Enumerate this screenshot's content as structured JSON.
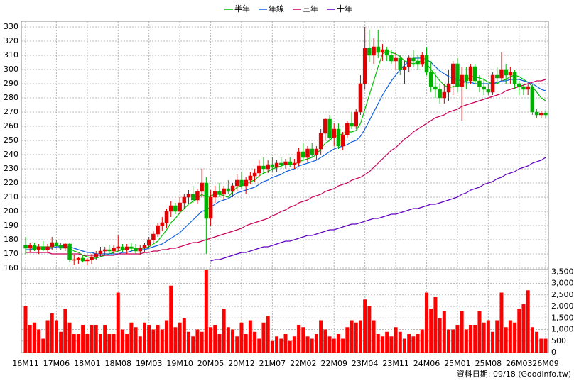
{
  "chart_data": {
    "type": "candlestick",
    "legend": "top",
    "grid": true,
    "footer": "資料日期: 09/18 (Goodinfo.tw)",
    "up_color": "#e00000",
    "down_color": "#00b000",
    "volume_color": "#ff0000",
    "categories": [
      "16M11",
      null,
      null,
      null,
      null,
      null,
      null,
      "17M06",
      null,
      null,
      null,
      null,
      null,
      null,
      "18M01",
      null,
      null,
      null,
      null,
      null,
      null,
      "18M08",
      null,
      null,
      null,
      null,
      null,
      null,
      "19M03",
      null,
      null,
      null,
      null,
      null,
      null,
      "19M10",
      null,
      null,
      null,
      null,
      null,
      null,
      "20M05",
      null,
      null,
      null,
      null,
      null,
      null,
      "20M12",
      null,
      null,
      null,
      null,
      null,
      null,
      "21M07",
      null,
      null,
      null,
      null,
      null,
      null,
      "22M02",
      null,
      null,
      null,
      null,
      null,
      null,
      "22M09",
      null,
      null,
      null,
      null,
      null,
      null,
      "23M04",
      null,
      null,
      null,
      null,
      null,
      null,
      "23M11",
      null,
      null,
      null,
      null,
      null,
      null,
      "24M06",
      null,
      null,
      null,
      null,
      null,
      null,
      "25M01",
      null,
      null,
      null,
      null,
      null,
      null,
      "25M08",
      null,
      null,
      null,
      null,
      null,
      null,
      "26M03",
      null,
      null,
      null,
      null,
      null,
      "26M09"
    ],
    "candles": [
      [
        176,
        182,
        170,
        174,
        2000
      ],
      [
        174,
        178,
        171,
        176,
        1200
      ],
      [
        176,
        178,
        172,
        173,
        1300
      ],
      [
        173,
        177,
        170,
        175,
        1000
      ],
      [
        175,
        179,
        172,
        173,
        600
      ],
      [
        173,
        177,
        171,
        175,
        1400
      ],
      [
        175,
        182,
        173,
        178,
        1700
      ],
      [
        178,
        180,
        174,
        176,
        1400
      ],
      [
        176,
        178,
        173,
        174,
        900
      ],
      [
        174,
        178,
        172,
        177,
        1900
      ],
      [
        177,
        178,
        164,
        166,
        1300
      ],
      [
        166,
        169,
        162,
        166,
        800
      ],
      [
        166,
        168,
        163,
        167,
        800
      ],
      [
        167,
        169,
        164,
        165,
        1200
      ],
      [
        165,
        167,
        162,
        166,
        800
      ],
      [
        166,
        170,
        163,
        168,
        1200
      ],
      [
        168,
        172,
        166,
        170,
        1200
      ],
      [
        170,
        175,
        168,
        172,
        800
      ],
      [
        172,
        175,
        169,
        173,
        1200
      ],
      [
        173,
        176,
        170,
        172,
        800
      ],
      [
        172,
        176,
        170,
        174,
        800
      ],
      [
        174,
        183,
        172,
        175,
        2600
      ],
      [
        175,
        177,
        171,
        173,
        1000
      ],
      [
        173,
        177,
        170,
        175,
        800
      ],
      [
        175,
        178,
        172,
        174,
        1300
      ],
      [
        174,
        177,
        170,
        172,
        1100
      ],
      [
        172,
        176,
        169,
        174,
        700
      ],
      [
        174,
        178,
        171,
        176,
        1300
      ],
      [
        176,
        182,
        174,
        180,
        1200
      ],
      [
        180,
        186,
        178,
        184,
        1000
      ],
      [
        184,
        192,
        182,
        190,
        1200
      ],
      [
        190,
        196,
        186,
        192,
        1000
      ],
      [
        192,
        202,
        188,
        200,
        1400
      ],
      [
        200,
        207,
        196,
        204,
        2900
      ],
      [
        204,
        206,
        198,
        200,
        1100
      ],
      [
        200,
        210,
        198,
        206,
        1300
      ],
      [
        206,
        212,
        202,
        210,
        1500
      ],
      [
        210,
        215,
        205,
        212,
        900
      ],
      [
        212,
        218,
        206,
        208,
        700
      ],
      [
        208,
        216,
        205,
        214,
        1000
      ],
      [
        214,
        230,
        210,
        220,
        900
      ],
      [
        220,
        224,
        170,
        195,
        3600
      ],
      [
        195,
        215,
        190,
        210,
        1100
      ],
      [
        210,
        218,
        206,
        214,
        1200
      ],
      [
        214,
        220,
        210,
        212,
        800
      ],
      [
        212,
        218,
        208,
        216,
        1900
      ],
      [
        216,
        222,
        212,
        214,
        1100
      ],
      [
        214,
        220,
        210,
        218,
        1000
      ],
      [
        218,
        226,
        214,
        222,
        700
      ],
      [
        222,
        228,
        216,
        218,
        1300
      ],
      [
        218,
        224,
        212,
        222,
        800
      ],
      [
        222,
        228,
        219,
        225,
        1400
      ],
      [
        225,
        230,
        221,
        227,
        900
      ],
      [
        227,
        236,
        224,
        232,
        600
      ],
      [
        232,
        238,
        226,
        230,
        1300
      ],
      [
        230,
        236,
        227,
        233,
        1600
      ],
      [
        233,
        238,
        228,
        231,
        500
      ],
      [
        231,
        236,
        228,
        234,
        700
      ],
      [
        234,
        238,
        230,
        233,
        600
      ],
      [
        233,
        237,
        230,
        235,
        800
      ],
      [
        235,
        238,
        231,
        233,
        500
      ],
      [
        233,
        237,
        230,
        234,
        700
      ],
      [
        234,
        245,
        232,
        242,
        1200
      ],
      [
        242,
        248,
        236,
        238,
        1100
      ],
      [
        238,
        246,
        235,
        244,
        700
      ],
      [
        244,
        248,
        238,
        240,
        600
      ],
      [
        240,
        246,
        236,
        244,
        800
      ],
      [
        244,
        258,
        240,
        255,
        1400
      ],
      [
        255,
        266,
        250,
        265,
        1000
      ],
      [
        265,
        268,
        250,
        252,
        700
      ],
      [
        252,
        262,
        246,
        258,
        600
      ],
      [
        258,
        262,
        244,
        246,
        800
      ],
      [
        246,
        256,
        243,
        254,
        600
      ],
      [
        254,
        264,
        252,
        262,
        1100
      ],
      [
        262,
        270,
        258,
        260,
        1400
      ],
      [
        260,
        272,
        258,
        270,
        1300
      ],
      [
        270,
        296,
        268,
        290,
        1400
      ],
      [
        290,
        330,
        286,
        315,
        2300
      ],
      [
        315,
        328,
        305,
        310,
        2000
      ],
      [
        310,
        322,
        304,
        316,
        1400
      ],
      [
        316,
        328,
        308,
        312,
        800
      ],
      [
        312,
        318,
        306,
        314,
        700
      ],
      [
        314,
        316,
        306,
        310,
        900
      ],
      [
        310,
        314,
        304,
        306,
        700
      ],
      [
        306,
        312,
        300,
        308,
        1100
      ],
      [
        308,
        310,
        296,
        300,
        900
      ],
      [
        300,
        306,
        290,
        302,
        600
      ],
      [
        302,
        310,
        298,
        308,
        800
      ],
      [
        308,
        314,
        302,
        306,
        700
      ],
      [
        306,
        310,
        300,
        304,
        800
      ],
      [
        304,
        312,
        302,
        310,
        1000
      ],
      [
        310,
        316,
        296,
        298,
        2600
      ],
      [
        298,
        306,
        284,
        288,
        1900
      ],
      [
        288,
        298,
        280,
        286,
        2400
      ],
      [
        286,
        290,
        276,
        280,
        1500
      ],
      [
        280,
        290,
        276,
        284,
        1800
      ],
      [
        284,
        300,
        278,
        290,
        1000
      ],
      [
        290,
        306,
        282,
        304,
        1000
      ],
      [
        304,
        308,
        284,
        288,
        1200
      ],
      [
        288,
        302,
        264,
        296,
        1800
      ],
      [
        296,
        302,
        286,
        292,
        1000
      ],
      [
        292,
        304,
        290,
        302,
        1200
      ],
      [
        302,
        304,
        290,
        292,
        1200
      ],
      [
        292,
        296,
        284,
        288,
        1800
      ],
      [
        288,
        294,
        282,
        286,
        1300
      ],
      [
        286,
        290,
        282,
        284,
        1400
      ],
      [
        284,
        298,
        282,
        296,
        900
      ],
      [
        296,
        302,
        290,
        294,
        1400
      ],
      [
        294,
        312,
        292,
        300,
        2600
      ],
      [
        300,
        304,
        290,
        296,
        1100
      ],
      [
        296,
        302,
        290,
        298,
        1400
      ],
      [
        298,
        300,
        286,
        290,
        1300
      ],
      [
        290,
        292,
        282,
        288,
        1900
      ],
      [
        288,
        290,
        282,
        286,
        2100
      ],
      [
        286,
        290,
        282,
        288,
        2700
      ],
      [
        288,
        290,
        268,
        270,
        1100
      ],
      [
        270,
        272,
        266,
        268,
        900
      ],
      [
        268,
        271,
        266,
        269,
        600
      ],
      [
        269,
        271,
        266,
        268,
        600
      ]
    ],
    "series": [
      {
        "name": "半年",
        "color": "#00c000",
        "values": [
          175,
          175,
          175,
          175,
          175,
          175,
          175,
          176,
          175,
          175,
          174,
          172,
          171,
          169,
          168,
          167,
          167,
          168,
          169,
          170,
          171,
          172,
          173,
          174,
          174,
          174,
          174,
          174,
          175,
          177,
          179,
          183,
          187,
          192,
          195,
          199,
          202,
          205,
          207,
          209,
          212,
          210,
          211,
          212,
          212,
          211,
          210,
          214,
          217,
          218,
          219,
          221,
          222,
          225,
          227,
          228,
          230,
          231,
          232,
          233,
          233,
          233,
          235,
          236,
          237,
          238,
          240,
          244,
          248,
          250,
          253,
          253,
          255,
          256,
          256,
          257,
          262,
          272,
          282,
          292,
          302,
          311,
          313,
          312,
          311,
          309,
          306,
          305,
          304,
          305,
          306,
          304,
          300,
          296,
          292,
          289,
          287,
          288,
          288,
          290,
          292,
          295,
          295,
          294,
          293,
          291,
          290,
          290,
          292,
          293,
          295,
          296,
          295,
          293,
          291,
          288,
          284,
          280,
          278
        ]
      },
      {
        "name": "年線",
        "color": "#1060e0",
        "values": [
          173,
          173,
          174,
          174,
          174,
          174,
          174,
          175,
          175,
          175,
          175,
          174,
          173,
          172,
          171,
          171,
          170,
          170,
          170,
          170,
          170,
          170,
          171,
          171,
          172,
          173,
          173,
          173,
          174,
          175,
          176,
          177,
          179,
          181,
          183,
          185,
          188,
          191,
          194,
          197,
          200,
          201,
          203,
          205,
          207,
          208,
          209,
          211,
          213,
          214,
          215,
          216,
          217,
          219,
          221,
          222,
          224,
          225,
          226,
          228,
          229,
          230,
          232,
          233,
          234,
          235,
          236,
          238,
          240,
          242,
          244,
          245,
          246,
          247,
          249,
          250,
          253,
          258,
          264,
          270,
          276,
          282,
          287,
          292,
          296,
          300,
          303,
          306,
          308,
          308,
          308,
          307,
          305,
          302,
          299,
          297,
          295,
          294,
          293,
          292,
          291,
          291,
          290,
          290,
          290,
          290,
          290,
          291,
          292,
          292,
          293,
          293,
          293,
          292,
          291,
          290,
          288,
          286,
          285
        ]
      },
      {
        "name": "三年",
        "color": "#c8005a",
        "values": [
          171,
          171,
          171,
          171,
          171,
          171,
          170,
          170,
          170,
          170,
          170,
          170,
          170,
          169,
          169,
          169,
          169,
          169,
          169,
          169,
          169,
          170,
          170,
          170,
          170,
          170,
          170,
          171,
          171,
          172,
          172,
          173,
          173,
          174,
          174,
          175,
          176,
          177,
          178,
          178,
          179,
          180,
          181,
          182,
          183,
          184,
          185,
          186,
          187,
          188,
          190,
          191,
          192,
          193,
          194,
          195,
          197,
          198,
          200,
          201,
          203,
          204,
          206,
          207,
          208,
          210,
          211,
          212,
          214,
          215,
          216,
          218,
          219,
          220,
          222,
          223,
          224,
          226,
          228,
          231,
          234,
          237,
          240,
          243,
          245,
          248,
          251,
          253,
          256,
          258,
          260,
          262,
          264,
          266,
          267,
          268,
          270,
          271,
          272,
          274,
          275,
          276,
          277,
          278,
          279,
          280,
          281,
          282,
          283,
          285,
          286,
          287,
          288,
          289,
          290,
          291,
          292,
          292,
          293
        ]
      },
      {
        "name": "十年",
        "color": "#6000c0",
        "values": [
          null,
          null,
          null,
          null,
          null,
          null,
          null,
          null,
          null,
          null,
          null,
          null,
          null,
          null,
          null,
          null,
          null,
          null,
          null,
          null,
          null,
          null,
          null,
          null,
          null,
          null,
          null,
          null,
          null,
          null,
          null,
          null,
          null,
          null,
          null,
          null,
          null,
          null,
          null,
          null,
          null,
          null,
          165,
          166,
          166,
          167,
          168,
          169,
          170,
          171,
          171,
          172,
          173,
          174,
          175,
          175,
          176,
          177,
          178,
          179,
          179,
          180,
          181,
          182,
          183,
          183,
          184,
          185,
          186,
          187,
          187,
          188,
          189,
          190,
          191,
          191,
          192,
          193,
          194,
          195,
          195,
          196,
          197,
          198,
          198,
          199,
          200,
          201,
          202,
          202,
          203,
          204,
          205,
          205,
          206,
          207,
          208,
          209,
          210,
          212,
          213,
          215,
          216,
          217,
          219,
          220,
          221,
          223,
          224,
          226,
          227,
          228,
          230,
          231,
          232,
          234,
          235,
          236,
          238
        ]
      }
    ],
    "ylim": [
      158,
      334
    ],
    "yticks": [
      160,
      170,
      180,
      190,
      200,
      210,
      220,
      230,
      240,
      250,
      260,
      270,
      280,
      290,
      300,
      310,
      320,
      330
    ],
    "y2lim": [
      0,
      3600
    ],
    "y2ticks": [
      0,
      500,
      {
        "value": 1000,
        "label": "1,000"
      },
      {
        "value": 1500,
        "label": "1,500"
      },
      {
        "value": 2000,
        "label": "2,000"
      },
      {
        "value": 2500,
        "label": "2,500"
      },
      {
        "value": 3000,
        "label": "3,000"
      },
      {
        "value": 3500,
        "label": "3,500"
      }
    ]
  }
}
